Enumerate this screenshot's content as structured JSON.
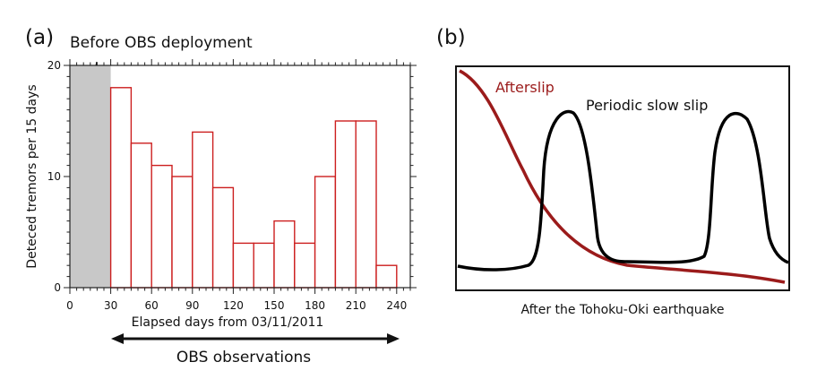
{
  "panel_a": {
    "label": "(a)",
    "annotation": "Before OBS deployment",
    "bracket_label": "OBS observations",
    "chart_data": {
      "type": "bar",
      "xlabel": "Elapsed days from 03/11/2011",
      "ylabel": "Deteced  tremors per 15 days",
      "xlim": [
        0,
        250
      ],
      "ylim": [
        0,
        20
      ],
      "xticks": [
        "0",
        "30",
        "60",
        "90",
        "120",
        "150",
        "180",
        "210",
        "240"
      ],
      "yticks": [
        "0",
        "10",
        "20"
      ],
      "bin_width": 15,
      "bin_starts": [
        30,
        45,
        60,
        75,
        90,
        105,
        120,
        135,
        150,
        165,
        180,
        195,
        210,
        225
      ],
      "values": [
        18,
        13,
        11,
        10,
        14,
        9,
        4,
        4,
        6,
        4,
        10,
        15,
        15,
        2
      ],
      "shaded_range": [
        0,
        30
      ],
      "bar_color": "#cc1f1f",
      "shade_color": "#c8c8c8"
    }
  },
  "panel_b": {
    "label": "(b)",
    "afterslip_label": "Afterslip",
    "slowslip_label": "Periodic slow  slip",
    "xlabel": "After the Tohoku-Oki earthquake",
    "afterslip_color": "#9b1b1b",
    "slowslip_color": "#000000"
  }
}
